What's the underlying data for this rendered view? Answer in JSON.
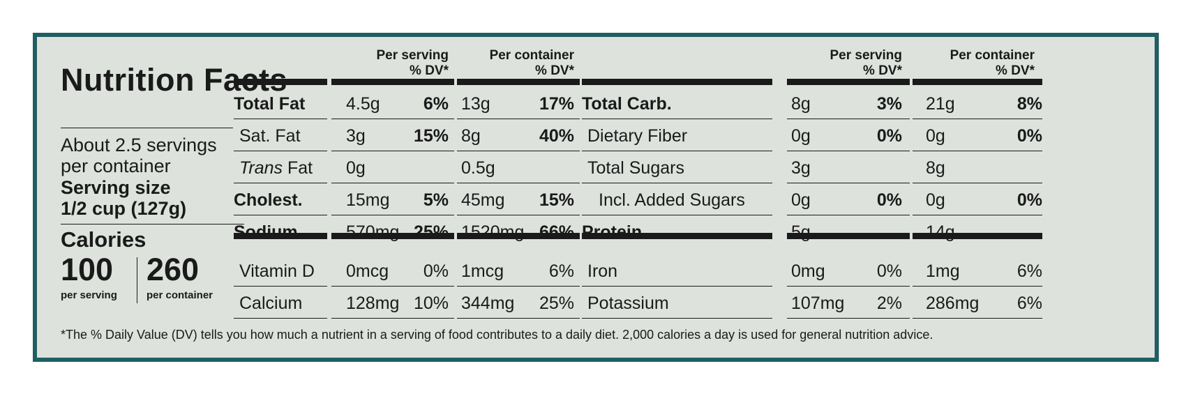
{
  "title": "Nutrition Facts",
  "servings": "About 2.5 servings per container",
  "serving_size_label": "Serving size",
  "serving_size_value": "1/2 cup (127g)",
  "calories_label": "Calories",
  "calories_serving": "100",
  "calories_serving_label": "per serving",
  "calories_container": "260",
  "calories_container_label": "per container",
  "headers": {
    "per_serving": "Per serving",
    "per_container": "Per container",
    "dv": "% DV*"
  },
  "left_rows": [
    {
      "name": "Total Fat",
      "s_amt": "4.5g",
      "s_dv": "6%",
      "c_amt": "13g",
      "c_dv": "17%"
    },
    {
      "name": "Sat. Fat",
      "s_amt": "3g",
      "s_dv": "15%",
      "c_amt": "8g",
      "c_dv": "40%"
    },
    {
      "name": "Trans",
      "name2": " Fat",
      "s_amt": "0g",
      "s_dv": "",
      "c_amt": "0.5g",
      "c_dv": ""
    },
    {
      "name": "Cholest.",
      "s_amt": "15mg",
      "s_dv": "5%",
      "c_amt": "45mg",
      "c_dv": "15%"
    },
    {
      "name": "Sodium",
      "s_amt": "570mg",
      "s_dv": "25%",
      "c_amt": "1520mg",
      "c_dv": "66%"
    },
    {
      "name": "Vitamin D",
      "s_amt": "0mcg",
      "s_dv": "0%",
      "c_amt": "1mcg",
      "c_dv": "6%"
    },
    {
      "name": "Calcium",
      "s_amt": "128mg",
      "s_dv": "10%",
      "c_amt": "344mg",
      "c_dv": "25%"
    }
  ],
  "right_rows": [
    {
      "name": "Total Carb.",
      "s_amt": "8g",
      "s_dv": "3%",
      "c_amt": "21g",
      "c_dv": "8%"
    },
    {
      "name": "Dietary Fiber",
      "s_amt": "0g",
      "s_dv": "0%",
      "c_amt": "0g",
      "c_dv": "0%"
    },
    {
      "name": "Total Sugars",
      "s_amt": "3g",
      "s_dv": "",
      "c_amt": "8g",
      "c_dv": ""
    },
    {
      "name": "Incl. Added Sugars",
      "s_amt": "0g",
      "s_dv": "0%",
      "c_amt": "0g",
      "c_dv": "0%"
    },
    {
      "name": "Protein",
      "s_amt": "5g",
      "s_dv": "",
      "c_amt": "14g",
      "c_dv": ""
    },
    {
      "name": "Iron",
      "s_amt": "0mg",
      "s_dv": "0%",
      "c_amt": "1mg",
      "c_dv": "6%"
    },
    {
      "name": "Potassium",
      "s_amt": "107mg",
      "s_dv": "2%",
      "c_amt": "286mg",
      "c_dv": "6%"
    }
  ],
  "footnote": "*The % Daily Value (DV) tells you how much a nutrient in a serving of food contributes to a daily diet. 2,000 calories a day is used for general nutrition advice.",
  "colors": {
    "border": "#1f5f63",
    "background": "#dde2dd",
    "text": "#1a1a1a"
  }
}
